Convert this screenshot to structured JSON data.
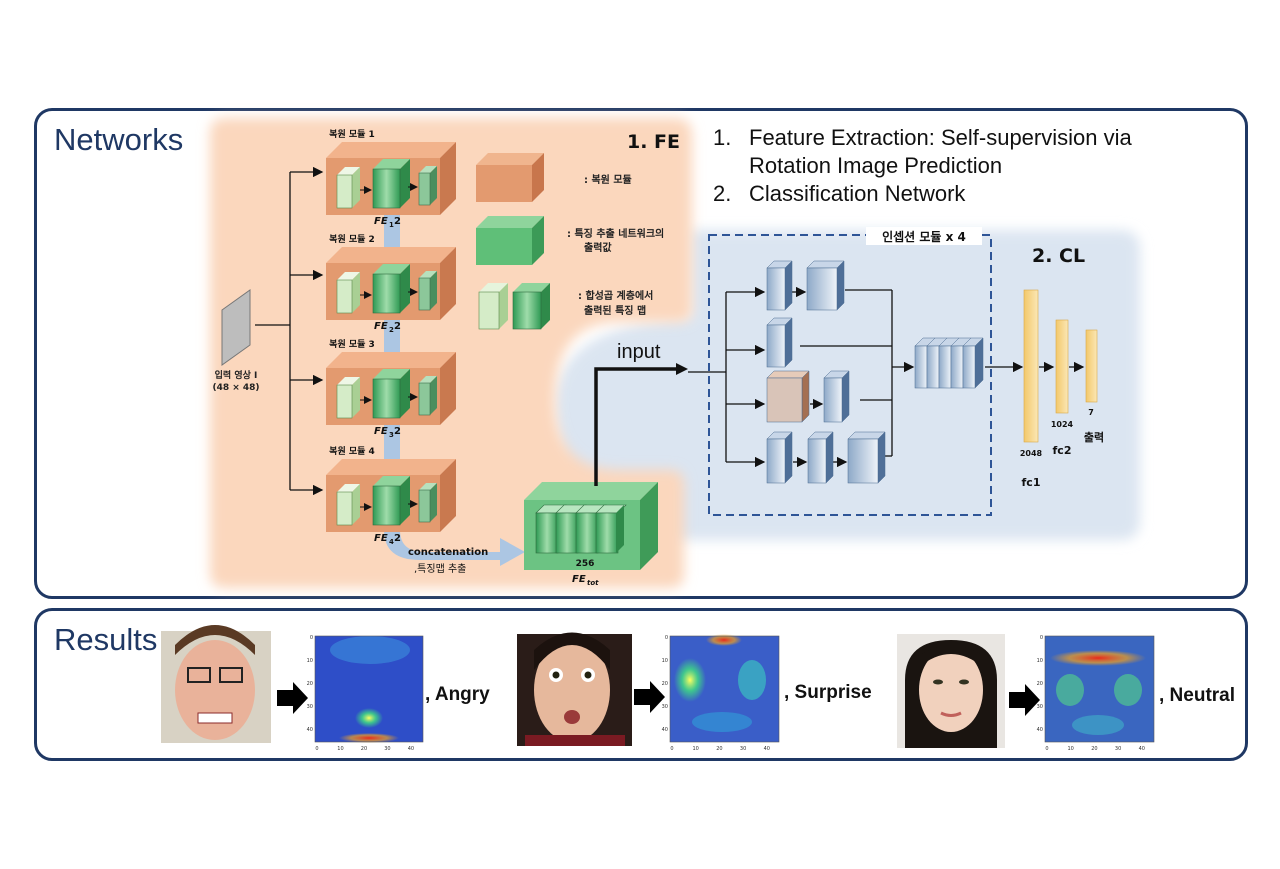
{
  "networks": {
    "title": "Networks",
    "fe_label": "1. FE",
    "cl_label": "2. CL",
    "input_label": "input",
    "list": [
      {
        "num": "1.",
        "text": "Feature Extraction: Self-supervision via Rotation Image Prediction"
      },
      {
        "num": "2.",
        "text": "Classification Network"
      }
    ],
    "modules": [
      {
        "label": "복원 모듈 1",
        "fe": "FE",
        "sub": "1",
        "suffix": "2"
      },
      {
        "label": "복원 모듈 2",
        "fe": "FE",
        "sub": "2",
        "suffix": "2"
      },
      {
        "label": "복원 모듈 3",
        "fe": "FE",
        "sub": "3",
        "suffix": "2"
      },
      {
        "label": "복원 모듈 4",
        "fe": "FE",
        "sub": "4",
        "suffix": "2"
      }
    ],
    "input_image_label": "입력 영상 I",
    "input_image_size": "(48 × 48)",
    "legend": {
      "restore_module": ": 복원 모듈",
      "feature_output_line1": ": 특징 추출 네트워크의",
      "feature_output_line2": "출력값",
      "conv_map_line1": ": 합성곱 계층에서",
      "conv_map_line2": "출력된 특징 맵"
    },
    "concat_label": "concatenation",
    "concat_sub": ",특징맵 추출",
    "fetot_channels": "256",
    "fetot_label": "FE",
    "fetot_sub": "tot",
    "inception_label": "인셉션 모듈 x 4",
    "fc": [
      {
        "size": "2048",
        "name": "fc1"
      },
      {
        "size": "1024",
        "name": "fc2"
      },
      {
        "size": "7",
        "name": "출력"
      }
    ]
  },
  "results": {
    "title": "Results",
    "items": [
      {
        "emotion": ", Angry",
        "face": "angry-face"
      },
      {
        "emotion": ", Surprise",
        "face": "surprise-face"
      },
      {
        "emotion": ", Neutral",
        "face": "neutral-face"
      }
    ],
    "heat_xticks": [
      "0",
      "10",
      "20",
      "30",
      "40"
    ],
    "heat_yticks": [
      "0",
      "10",
      "20",
      "30",
      "40"
    ]
  },
  "colors": {
    "frame": "#1f3864",
    "fe_bg": "#fbd9c0",
    "cl_bg": "#dde6f2",
    "module": "#e39a6f",
    "green": "#4fae6a",
    "lightgreen": "#d5ecc8",
    "fc": "#f5d58a"
  }
}
